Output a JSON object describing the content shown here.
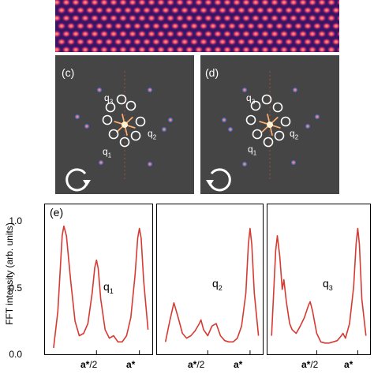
{
  "panels": {
    "c": {
      "label": "(c)",
      "rotation": "counterclockwise"
    },
    "d": {
      "label": "(d)",
      "rotation": "clockwise"
    },
    "e": {
      "label": "(e)"
    }
  },
  "fft_labels": {
    "q1": "q",
    "q1_sub": "1",
    "q2": "q",
    "q2_sub": "2",
    "q3": "q",
    "q3_sub": "3"
  },
  "plot_axes": {
    "ylabel": "FFT intensity (arb. units)",
    "yticks": [
      "1.0",
      "0.5",
      "0.0"
    ],
    "xtick_half_bold": "a*",
    "xtick_half_rest": "/2",
    "xtick_full": "a*"
  },
  "colors": {
    "curve": "#d63a32",
    "fft_bg": "#454545",
    "stm_bg": "#3a1464"
  },
  "chart_data": [
    {
      "type": "line",
      "title": "",
      "label": "q1",
      "ylim": [
        0,
        1.1
      ],
      "peaks": [
        {
          "x": 0.12,
          "y": 1.0
        },
        {
          "x": 0.5,
          "y": 0.72
        },
        {
          "x": 1.0,
          "y": 0.98
        }
      ],
      "x": [
        0.0,
        0.05,
        0.1,
        0.12,
        0.15,
        0.2,
        0.25,
        0.3,
        0.35,
        0.4,
        0.45,
        0.48,
        0.5,
        0.52,
        0.55,
        0.6,
        0.65,
        0.7,
        0.75,
        0.8,
        0.85,
        0.9,
        0.95,
        0.98,
        1.0,
        1.02,
        1.05,
        1.1
      ],
      "y": [
        0.0,
        0.3,
        0.92,
        1.0,
        0.92,
        0.55,
        0.22,
        0.1,
        0.12,
        0.2,
        0.45,
        0.66,
        0.72,
        0.65,
        0.4,
        0.15,
        0.08,
        0.1,
        0.05,
        0.05,
        0.1,
        0.25,
        0.6,
        0.9,
        0.98,
        0.9,
        0.55,
        0.15
      ]
    },
    {
      "type": "line",
      "title": "",
      "label": "q2",
      "ylim": [
        0,
        1.1
      ],
      "peaks": [
        {
          "x": 0.1,
          "y": 0.37
        },
        {
          "x": 0.42,
          "y": 0.23
        },
        {
          "x": 1.0,
          "y": 0.98
        }
      ],
      "x": [
        0.0,
        0.05,
        0.1,
        0.15,
        0.2,
        0.25,
        0.3,
        0.35,
        0.4,
        0.42,
        0.45,
        0.5,
        0.55,
        0.6,
        0.65,
        0.7,
        0.75,
        0.8,
        0.85,
        0.9,
        0.95,
        0.98,
        1.0,
        1.02,
        1.05,
        1.1
      ],
      "y": [
        0.05,
        0.22,
        0.37,
        0.25,
        0.12,
        0.08,
        0.1,
        0.14,
        0.2,
        0.23,
        0.15,
        0.1,
        0.18,
        0.2,
        0.1,
        0.06,
        0.05,
        0.05,
        0.08,
        0.18,
        0.45,
        0.85,
        0.98,
        0.85,
        0.45,
        0.1
      ]
    },
    {
      "type": "line",
      "title": "",
      "label": "q3",
      "ylim": [
        0,
        1.1
      ],
      "peaks": [
        {
          "x": 0.02,
          "y": 0.92
        },
        {
          "x": 0.1,
          "y": 0.56
        },
        {
          "x": 0.42,
          "y": 0.38
        },
        {
          "x": 0.82,
          "y": 0.12
        },
        {
          "x": 1.0,
          "y": 0.98
        }
      ],
      "x": [
        -0.05,
        0.0,
        0.02,
        0.05,
        0.08,
        0.1,
        0.13,
        0.17,
        0.2,
        0.25,
        0.3,
        0.35,
        0.4,
        0.42,
        0.45,
        0.5,
        0.55,
        0.6,
        0.65,
        0.7,
        0.75,
        0.8,
        0.82,
        0.85,
        0.9,
        0.95,
        0.98,
        1.0,
        1.02,
        1.05,
        1.1
      ],
      "y": [
        0.1,
        0.8,
        0.92,
        0.75,
        0.48,
        0.56,
        0.38,
        0.2,
        0.15,
        0.12,
        0.18,
        0.25,
        0.35,
        0.38,
        0.3,
        0.12,
        0.05,
        0.04,
        0.04,
        0.05,
        0.06,
        0.1,
        0.12,
        0.08,
        0.2,
        0.5,
        0.85,
        0.98,
        0.85,
        0.4,
        0.1
      ]
    }
  ]
}
